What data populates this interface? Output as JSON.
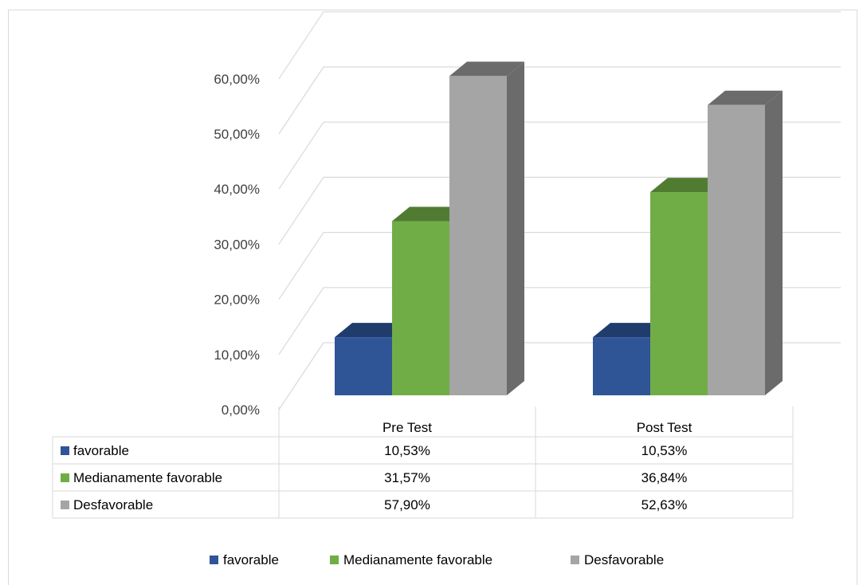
{
  "chart_data": {
    "type": "bar",
    "categories": [
      "Pre Test",
      "Post Test"
    ],
    "series": [
      {
        "name": "favorable",
        "values": [
          10.53,
          10.53
        ],
        "labels": [
          "10,53%",
          "10,53%"
        ],
        "color": "#2f5597",
        "dark": "#203c6c"
      },
      {
        "name": "Medianamente favorable",
        "values": [
          31.57,
          36.84
        ],
        "labels": [
          "31,57%",
          "36,84%"
        ],
        "color": "#70ad47",
        "dark": "#507c32"
      },
      {
        "name": "Desfavorable",
        "values": [
          57.9,
          52.63
        ],
        "labels": [
          "57,90%",
          "52,63%"
        ],
        "color": "#a5a5a5",
        "dark": "#6b6b6b"
      }
    ],
    "ylim": [
      0,
      60
    ],
    "yticks": [
      "0,00%",
      "10,00%",
      "20,00%",
      "30,00%",
      "40,00%",
      "50,00%",
      "60,00%"
    ],
    "grid": true,
    "legend": "bottom",
    "data_table": true
  }
}
